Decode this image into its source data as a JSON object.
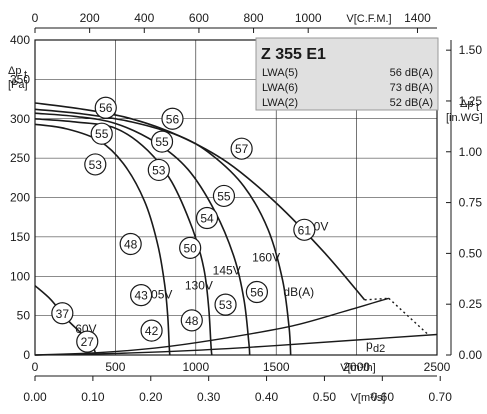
{
  "chart_data": {
    "type": "line",
    "title": "Z 355 E1",
    "info_rows": [
      {
        "label": "LWA(5)",
        "value": "56 dB(A)"
      },
      {
        "label": "LWA(6)",
        "value": "73 dB(A)"
      },
      {
        "label": "LWA(2)",
        "value": "52 dB(A)"
      }
    ],
    "axes": {
      "bottom": {
        "label": "V[m³/h]",
        "range": [
          0,
          2500
        ],
        "ticks": [
          "0",
          "500",
          "1000",
          "1500",
          "2000",
          "2500"
        ]
      },
      "bottom2": {
        "label": "V[m³/s]",
        "range": [
          0,
          0.7
        ],
        "ticks": [
          "0.00",
          "0.10",
          "0.20",
          "0.30",
          "0.40",
          "0.50",
          "0.60",
          "0.70"
        ]
      },
      "top": {
        "label": "V[C.F.M.]",
        "range": [
          0,
          1400
        ],
        "ticks": [
          "0",
          "200",
          "400",
          "600",
          "800",
          "1000",
          "1400"
        ]
      },
      "left": {
        "label_main": "Δp",
        "label_sub": "t",
        "label_unit": "[Pa]",
        "range": [
          0,
          400
        ],
        "ticks": [
          "0",
          "50",
          "100",
          "150",
          "200",
          "250",
          "300",
          "350",
          "400"
        ]
      },
      "right": {
        "label_main": "Δp",
        "label_sub": "t",
        "label_unit": "[in.WG]",
        "range": [
          0,
          1.55
        ],
        "ticks": [
          "0.00",
          "0.25",
          "0.50",
          "0.75",
          "1.00",
          "1.25",
          "1.50"
        ]
      }
    },
    "grid": true,
    "series": [
      {
        "name": "230V",
        "points": [
          [
            0,
            320
          ],
          [
            300,
            312
          ],
          [
            600,
            300
          ],
          [
            900,
            278
          ],
          [
            1200,
            244
          ],
          [
            1500,
            193
          ],
          [
            1800,
            130
          ],
          [
            2050,
            70
          ]
        ]
      },
      {
        "name": "160V",
        "points": [
          [
            0,
            312
          ],
          [
            300,
            306
          ],
          [
            600,
            296
          ],
          [
            900,
            278
          ],
          [
            1100,
            254
          ],
          [
            1300,
            214
          ],
          [
            1450,
            159
          ],
          [
            1540,
            95
          ],
          [
            1580,
            35
          ],
          [
            1590,
            0
          ]
        ]
      },
      {
        "name": "145V",
        "points": [
          [
            0,
            307
          ],
          [
            250,
            303
          ],
          [
            500,
            294
          ],
          [
            750,
            270
          ],
          [
            950,
            236
          ],
          [
            1120,
            182
          ],
          [
            1240,
            123
          ],
          [
            1300,
            70
          ],
          [
            1330,
            15
          ],
          [
            1335,
            0
          ]
        ]
      },
      {
        "name": "130V",
        "points": [
          [
            0,
            300
          ],
          [
            250,
            296
          ],
          [
            500,
            288
          ],
          [
            700,
            260
          ],
          [
            850,
            220
          ],
          [
            980,
            160
          ],
          [
            1050,
            110
          ],
          [
            1080,
            60
          ],
          [
            1095,
            10
          ],
          [
            1100,
            0
          ]
        ]
      },
      {
        "name": "105V",
        "points": [
          [
            0,
            293
          ],
          [
            200,
            287
          ],
          [
            400,
            272
          ],
          [
            550,
            243
          ],
          [
            680,
            196
          ],
          [
            760,
            143
          ],
          [
            805,
            92
          ],
          [
            825,
            50
          ],
          [
            835,
            10
          ],
          [
            838,
            0
          ]
        ]
      },
      {
        "name": "60V",
        "points": [
          [
            0,
            88
          ],
          [
            100,
            70
          ],
          [
            200,
            45
          ],
          [
            300,
            25
          ],
          [
            360,
            10
          ],
          [
            380,
            0
          ]
        ]
      }
    ],
    "system_curves": [
      {
        "name": "",
        "points": [
          [
            0,
            0
          ],
          [
            400,
            3
          ],
          [
            800,
            10
          ],
          [
            1200,
            22
          ],
          [
            1600,
            37
          ],
          [
            1900,
            54
          ],
          [
            2000,
            60
          ],
          [
            2100,
            66
          ],
          [
            2200,
            72
          ]
        ]
      },
      {
        "name": "p_d2",
        "points": [
          [
            0,
            0
          ],
          [
            500,
            2
          ],
          [
            1000,
            6
          ],
          [
            1500,
            12
          ],
          [
            2000,
            19
          ],
          [
            2500,
            26
          ]
        ]
      }
    ],
    "curve_labels": [
      {
        "text": "230V",
        "x": 1650,
        "y": 163
      },
      {
        "text": "160V",
        "x": 1350,
        "y": 124
      },
      {
        "text": "145V",
        "x": 1105,
        "y": 107
      },
      {
        "text": "130V",
        "x": 932,
        "y": 88
      },
      {
        "text": "105V",
        "x": 680,
        "y": 77
      },
      {
        "text": "60V",
        "x": 250,
        "y": 33
      },
      {
        "text": "dB(A)",
        "x": 1545,
        "y": 80
      }
    ],
    "sound_levels": [
      {
        "value": "56",
        "x": 440,
        "y": 314
      },
      {
        "value": "56",
        "x": 855,
        "y": 300
      },
      {
        "value": "55",
        "x": 415,
        "y": 281
      },
      {
        "value": "55",
        "x": 790,
        "y": 271
      },
      {
        "value": "57",
        "x": 1285,
        "y": 262
      },
      {
        "value": "53",
        "x": 375,
        "y": 242
      },
      {
        "value": "53",
        "x": 770,
        "y": 235
      },
      {
        "value": "55",
        "x": 1175,
        "y": 202
      },
      {
        "value": "54",
        "x": 1070,
        "y": 174
      },
      {
        "value": "61",
        "x": 1675,
        "y": 159
      },
      {
        "value": "48",
        "x": 595,
        "y": 141
      },
      {
        "value": "50",
        "x": 965,
        "y": 136
      },
      {
        "value": "56",
        "x": 1380,
        "y": 80
      },
      {
        "value": "43",
        "x": 660,
        "y": 76
      },
      {
        "value": "53",
        "x": 1185,
        "y": 64
      },
      {
        "value": "37",
        "x": 170,
        "y": 53
      },
      {
        "value": "48",
        "x": 975,
        "y": 44
      },
      {
        "value": "42",
        "x": 725,
        "y": 31
      },
      {
        "value": "27",
        "x": 325,
        "y": 17
      }
    ],
    "pd2_label": {
      "main": "p",
      "sub": "d2"
    }
  }
}
